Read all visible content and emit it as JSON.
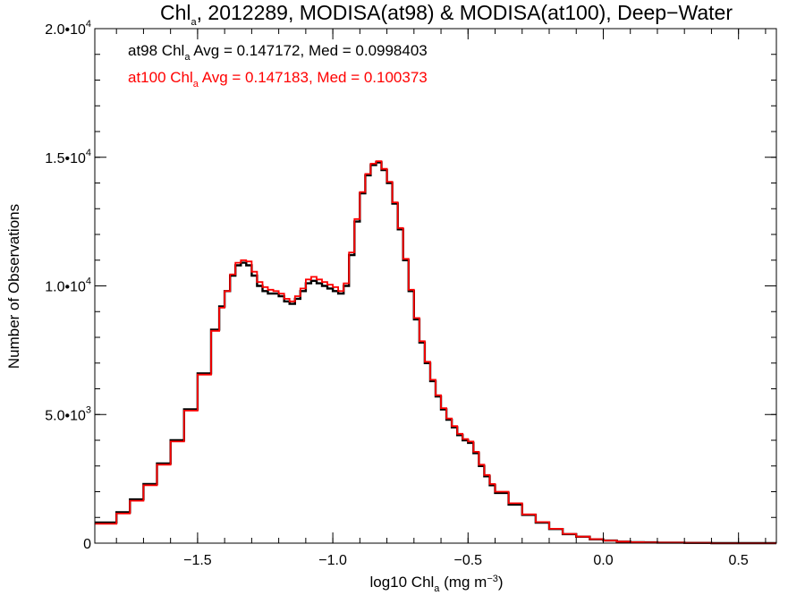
{
  "chart_data": {
    "type": "line",
    "title": {
      "prefix": "Chl",
      "prefix_sub": "a",
      "rest": ", 2012289, MODISA(at98) & MODISA(at100), Deep−Water"
    },
    "xlabel": {
      "pre": "log10 Chl",
      "sub": "a",
      "mid": " (mg m",
      "sup": "−3",
      "post": ")"
    },
    "ylabel": "Number of Observations",
    "xlim": [
      -1.88,
      0.64
    ],
    "ylim": [
      0,
      20000
    ],
    "x_ticks": [
      {
        "value": -1.5,
        "label": "−1.5"
      },
      {
        "value": -1.0,
        "label": "−1.0"
      },
      {
        "value": -0.5,
        "label": "−0.5"
      },
      {
        "value": 0.0,
        "label": "0.0"
      },
      {
        "value": 0.5,
        "label": "0.5"
      }
    ],
    "y_ticks": [
      {
        "value": 0,
        "label": "0",
        "exp": ""
      },
      {
        "value": 5000,
        "label": "5.0•10",
        "exp": "3"
      },
      {
        "value": 10000,
        "label": "1.0•10",
        "exp": "4"
      },
      {
        "value": 15000,
        "label": "1.5•10",
        "exp": "4"
      },
      {
        "value": 20000,
        "label": "2.0•10",
        "exp": "4"
      }
    ],
    "x_minor_step": 0.1,
    "y_minor_step": 1000,
    "grid": false,
    "annotations": [
      {
        "series": "at98",
        "color": "#000000",
        "pre": "at98 Chl",
        "sub": "a",
        "post": " Avg = 0.147172, Med = 0.0998403"
      },
      {
        "series": "at100",
        "color": "#ff0000",
        "pre": "at100 Chl",
        "sub": "a",
        "post": " Avg = 0.147183, Med = 0.100373"
      }
    ],
    "series": [
      {
        "name": "at98",
        "color": "#000000",
        "x": [
          -1.88,
          -1.8,
          -1.75,
          -1.7,
          -1.65,
          -1.6,
          -1.55,
          -1.5,
          -1.45,
          -1.42,
          -1.4,
          -1.38,
          -1.36,
          -1.34,
          -1.32,
          -1.3,
          -1.28,
          -1.26,
          -1.24,
          -1.22,
          -1.2,
          -1.18,
          -1.16,
          -1.14,
          -1.12,
          -1.1,
          -1.08,
          -1.06,
          -1.04,
          -1.02,
          -1.0,
          -0.98,
          -0.96,
          -0.94,
          -0.92,
          -0.9,
          -0.88,
          -0.86,
          -0.84,
          -0.82,
          -0.8,
          -0.78,
          -0.76,
          -0.74,
          -0.72,
          -0.7,
          -0.68,
          -0.66,
          -0.64,
          -0.62,
          -0.6,
          -0.58,
          -0.56,
          -0.54,
          -0.52,
          -0.5,
          -0.48,
          -0.46,
          -0.44,
          -0.42,
          -0.4,
          -0.35,
          -0.3,
          -0.25,
          -0.2,
          -0.15,
          -0.1,
          -0.05,
          0.0,
          0.05,
          0.1,
          0.15,
          0.2,
          0.3,
          0.4,
          0.5,
          0.6,
          0.64
        ],
        "y": [
          800,
          1200,
          1700,
          2300,
          3100,
          4000,
          5200,
          6600,
          8300,
          9200,
          9800,
          10400,
          10800,
          10900,
          10800,
          10400,
          10000,
          9800,
          9700,
          9700,
          9600,
          9400,
          9300,
          9500,
          9800,
          10100,
          10200,
          10100,
          10000,
          9900,
          9800,
          9700,
          10000,
          11200,
          12500,
          13600,
          14300,
          14700,
          14800,
          14500,
          14000,
          13200,
          12200,
          11000,
          9800,
          8700,
          7800,
          7000,
          6300,
          5700,
          5200,
          4800,
          4500,
          4200,
          4000,
          3900,
          3500,
          3000,
          2600,
          2250,
          1950,
          1500,
          1100,
          800,
          550,
          350,
          250,
          150,
          100,
          60,
          40,
          30,
          20,
          10,
          0,
          0,
          0,
          0
        ]
      },
      {
        "name": "at100",
        "color": "#ff0000",
        "x": [
          -1.88,
          -1.8,
          -1.75,
          -1.7,
          -1.65,
          -1.6,
          -1.55,
          -1.5,
          -1.45,
          -1.42,
          -1.4,
          -1.38,
          -1.36,
          -1.34,
          -1.32,
          -1.3,
          -1.28,
          -1.26,
          -1.24,
          -1.22,
          -1.2,
          -1.18,
          -1.16,
          -1.14,
          -1.12,
          -1.1,
          -1.08,
          -1.06,
          -1.04,
          -1.02,
          -1.0,
          -0.98,
          -0.96,
          -0.94,
          -0.92,
          -0.9,
          -0.88,
          -0.86,
          -0.84,
          -0.82,
          -0.8,
          -0.78,
          -0.76,
          -0.74,
          -0.72,
          -0.7,
          -0.68,
          -0.66,
          -0.64,
          -0.62,
          -0.6,
          -0.58,
          -0.56,
          -0.54,
          -0.52,
          -0.5,
          -0.48,
          -0.46,
          -0.44,
          -0.42,
          -0.4,
          -0.35,
          -0.3,
          -0.25,
          -0.2,
          -0.15,
          -0.1,
          -0.05,
          0.0,
          0.05,
          0.1,
          0.15,
          0.2,
          0.3,
          0.4,
          0.5,
          0.6,
          0.64
        ],
        "y": [
          750,
          1150,
          1650,
          2250,
          3050,
          3950,
          5150,
          6550,
          8250,
          9150,
          9800,
          10450,
          10900,
          11000,
          10950,
          10550,
          10150,
          9950,
          9850,
          9800,
          9700,
          9500,
          9400,
          9600,
          9900,
          10250,
          10350,
          10250,
          10150,
          10050,
          9950,
          9800,
          10100,
          11300,
          12600,
          13650,
          14350,
          14750,
          14850,
          14550,
          14050,
          13250,
          12250,
          11050,
          9850,
          8750,
          7850,
          7050,
          6350,
          5750,
          5250,
          4850,
          4550,
          4250,
          4050,
          3950,
          3550,
          3050,
          2650,
          2300,
          2000,
          1550,
          1120,
          820,
          560,
          360,
          255,
          155,
          100,
          60,
          40,
          30,
          20,
          10,
          0,
          0,
          0,
          0
        ]
      }
    ]
  }
}
